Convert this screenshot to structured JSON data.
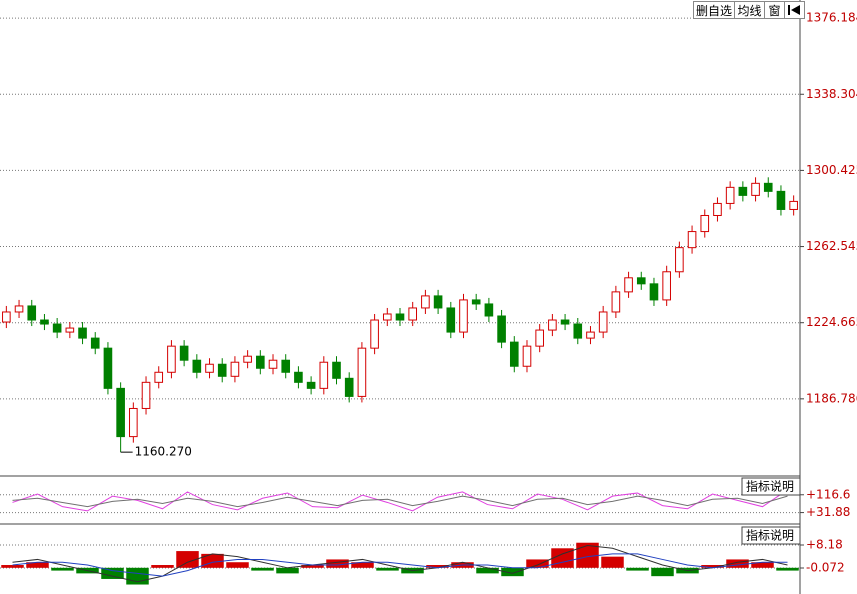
{
  "toolbar": {
    "buttons": [
      "删自选",
      "均线",
      "窗"
    ]
  },
  "chart_data": [
    {
      "type": "candlestick",
      "up_color": "#d40000",
      "down_color": "#008000",
      "grid": true,
      "label_color": "#c00000",
      "ylim": [
        1148.9,
        1385.2
      ],
      "yticks": [
        1186.786,
        1224.665,
        1262.545,
        1300.425,
        1338.304,
        1376.184
      ],
      "annotations": [
        {
          "text": "1160.270"
        }
      ],
      "open": [
        1225,
        1230,
        1233,
        1226,
        1224,
        1220,
        1222,
        1217,
        1212,
        1192,
        1168,
        1182,
        1195,
        1200,
        1213,
        1206,
        1200,
        1204,
        1198,
        1205,
        1208,
        1202,
        1206,
        1200,
        1195,
        1192,
        1205,
        1197,
        1188,
        1212,
        1226,
        1229,
        1226,
        1232,
        1238,
        1232,
        1220,
        1236,
        1234,
        1228,
        1215,
        1203,
        1213,
        1221,
        1226,
        1224,
        1217,
        1220,
        1230,
        1240,
        1247,
        1244,
        1236,
        1250,
        1262,
        1270,
        1278,
        1284,
        1292,
        1288,
        1294,
        1290,
        1281
      ],
      "high": [
        1233,
        1236,
        1236,
        1229,
        1227,
        1225,
        1225,
        1220,
        1215,
        1195,
        1185,
        1198,
        1203,
        1216,
        1216,
        1209,
        1207,
        1207,
        1208,
        1211,
        1211,
        1209,
        1209,
        1203,
        1198,
        1208,
        1208,
        1200,
        1215,
        1229,
        1232,
        1232,
        1235,
        1241,
        1241,
        1235,
        1239,
        1239,
        1237,
        1231,
        1218,
        1216,
        1224,
        1229,
        1229,
        1227,
        1223,
        1233,
        1243,
        1250,
        1250,
        1247,
        1253,
        1265,
        1273,
        1281,
        1287,
        1295,
        1295,
        1297,
        1297,
        1293,
        1288
      ],
      "low": [
        1222,
        1227,
        1223,
        1221,
        1217,
        1217,
        1214,
        1209,
        1189,
        1160.27,
        1165,
        1179,
        1192,
        1197,
        1203,
        1197,
        1197,
        1195,
        1195,
        1202,
        1199,
        1199,
        1197,
        1192,
        1189,
        1189,
        1194,
        1185,
        1185,
        1209,
        1223,
        1223,
        1223,
        1229,
        1229,
        1217,
        1217,
        1231,
        1225,
        1212,
        1200,
        1200,
        1210,
        1218,
        1221,
        1214,
        1214,
        1217,
        1227,
        1237,
        1241,
        1233,
        1233,
        1247,
        1259,
        1267,
        1275,
        1281,
        1285,
        1285,
        1287,
        1278,
        1278
      ],
      "close": [
        1230,
        1233,
        1226,
        1224,
        1220,
        1222,
        1217,
        1212,
        1192,
        1168,
        1182,
        1195,
        1200,
        1213,
        1206,
        1200,
        1204,
        1198,
        1205,
        1208,
        1202,
        1206,
        1200,
        1195,
        1192,
        1205,
        1197,
        1188,
        1212,
        1226,
        1229,
        1226,
        1232,
        1238,
        1232,
        1220,
        1236,
        1234,
        1228,
        1215,
        1203,
        1213,
        1221,
        1226,
        1224,
        1217,
        1220,
        1230,
        1240,
        1247,
        1244,
        1236,
        1250,
        1262,
        1270,
        1278,
        1284,
        1292,
        1288,
        1294,
        1290,
        1281,
        1285
      ]
    },
    {
      "type": "line",
      "indicator_label": "指标说明",
      "grid": true,
      "label_color": "#c00000",
      "ylim": [
        -12.9,
        196.3
      ],
      "yticks": [
        {
          "value": 31.88,
          "label": "+31.88"
        },
        {
          "value": 116.6,
          "label": "+116.6"
        }
      ],
      "series": [
        {
          "color": "#e040e0",
          "values": [
            80,
            120,
            60,
            40,
            110,
            90,
            50,
            130,
            70,
            45,
            100,
            125,
            60,
            55,
            115,
            80,
            40,
            105,
            130,
            70,
            50,
            120,
            95,
            45,
            110,
            125,
            65,
            50,
            120,
            90,
            60,
            140
          ]
        },
        {
          "color": "#707070",
          "values": [
            90,
            100,
            80,
            60,
            85,
            95,
            75,
            100,
            85,
            60,
            80,
            105,
            85,
            65,
            90,
            95,
            65,
            85,
            110,
            90,
            65,
            95,
            100,
            70,
            85,
            110,
            90,
            65,
            95,
            100,
            75,
            110
          ]
        }
      ]
    },
    {
      "type": "macd",
      "indicator_label": "指标说明",
      "grid": true,
      "label_color": "#c00000",
      "pos_color": "#d40000",
      "neg_color": "#008000",
      "ylim": [
        -9.4,
        14.64
      ],
      "yticks": [
        -0.072,
        {
          "value": 8.18,
          "label": "+8.18"
        }
      ],
      "histogram": [
        1,
        2,
        -1,
        -2,
        -4,
        -6,
        1,
        6,
        5,
        2,
        -1,
        -2,
        1,
        3,
        2,
        -1,
        -2,
        1,
        2,
        -2,
        -3,
        3,
        7,
        9,
        4,
        -1,
        -3,
        -2,
        1,
        3,
        2,
        -1
      ],
      "series": [
        {
          "color": "#303030",
          "values": [
            2,
            3,
            1,
            -1,
            -3,
            -5,
            -3,
            2,
            5,
            4,
            2,
            0,
            1,
            2,
            3,
            1,
            -1,
            0,
            2,
            0,
            -2,
            1,
            5,
            8,
            7,
            4,
            1,
            -1,
            0,
            2,
            3,
            1
          ]
        },
        {
          "color": "#2040c0",
          "values": [
            1,
            2,
            2,
            1,
            -1,
            -2,
            -3,
            -1,
            2,
            3,
            3,
            2,
            1,
            1,
            2,
            2,
            1,
            0,
            1,
            1,
            0,
            0,
            2,
            4,
            5,
            5,
            3,
            1,
            0,
            1,
            2,
            2
          ]
        }
      ]
    }
  ]
}
